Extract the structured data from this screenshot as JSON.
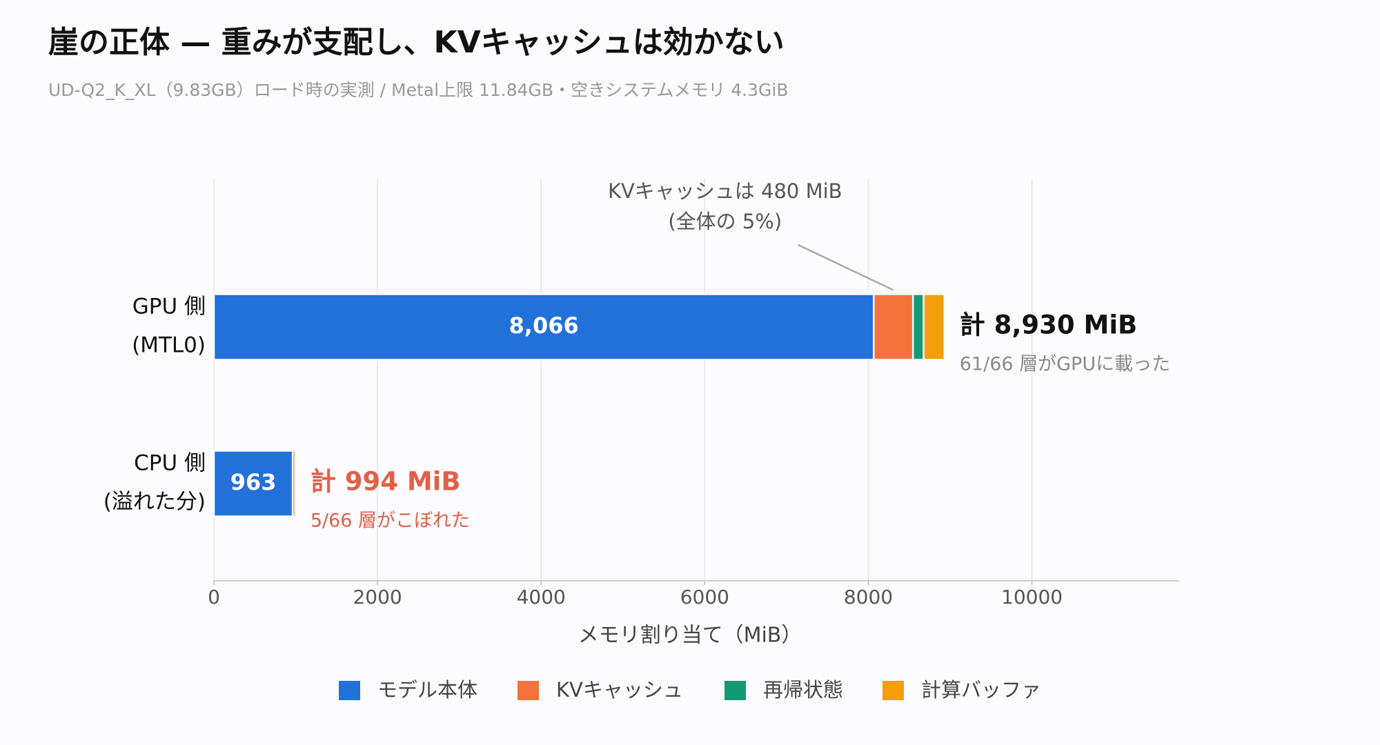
{
  "chart_data": {
    "type": "stacked-barh",
    "title": "崖の正体 — 重みが支配し、KVキャッシュは効かない",
    "subtitle": "UD-Q2_K_XL（9.83GB）ロード時の実測 / Metal上限 11.84GB・空きシステムメモリ 4.3GiB",
    "categories": [
      [
        "GPU 側",
        "(MTL0)"
      ],
      [
        "CPU 側",
        "(溢れた分)"
      ]
    ],
    "series": [
      {
        "name": "モデル本体",
        "color": "#2271d9",
        "values": [
          8066,
          963
        ],
        "value_labels": [
          "8,066",
          "963"
        ]
      },
      {
        "name": "KVキャッシュ",
        "color": "#f5733a",
        "values": [
          480,
          31
        ]
      },
      {
        "name": "再帰状態",
        "color": "#139a74",
        "values": [
          130,
          0
        ]
      },
      {
        "name": "計算バッファ",
        "color": "#f59e0b",
        "values": [
          254,
          0
        ]
      }
    ],
    "totals": [
      {
        "value": 8930,
        "label": "計 8,930 MiB",
        "note": "61/66 層がGPUに載った",
        "color": "#111111",
        "note_color": "#8a8a8a"
      },
      {
        "value": 994,
        "label": "計 994 MiB",
        "note": "5/66 層がこぼれた",
        "color": "#e0604a",
        "note_color": "#e0604a"
      }
    ],
    "annotation": [
      "KVキャッシュは 480 MiB",
      "(全体の 5%)"
    ],
    "xlabel": "メモリ割り当て（MiB）",
    "xlim": [
      0,
      11800
    ],
    "xticks": [
      0,
      2000,
      4000,
      6000,
      8000,
      10000
    ],
    "grid": true
  }
}
